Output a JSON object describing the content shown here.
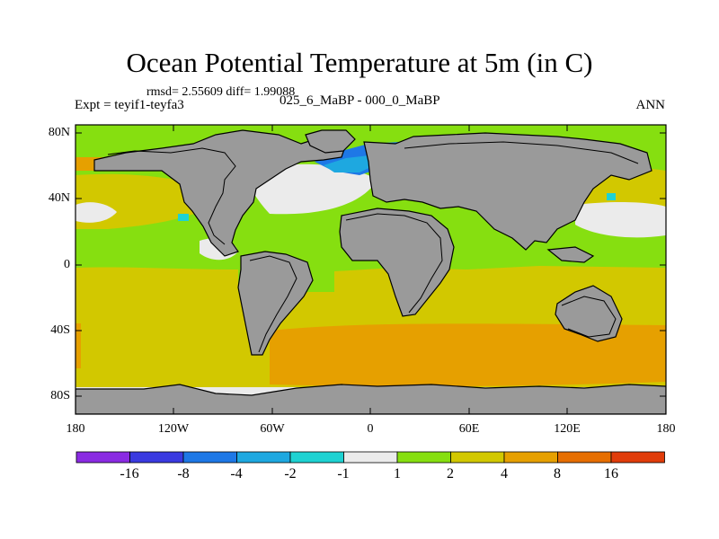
{
  "title": "Ocean Potential Temperature at 5m (in C)",
  "stats_line": "rmsd= 2.55609  diff= 1.99088",
  "experiment_label": "Expt = teyif1-teyfa3",
  "comparison_label": "025_6_MaBP - 000_0_MaBP",
  "season_label": "ANN",
  "lat_labels": [
    "80N",
    "40N",
    "0",
    "40S",
    "80S"
  ],
  "lon_labels": [
    "180",
    "120W",
    "60W",
    "0",
    "60E",
    "120E",
    "180"
  ],
  "colorbar": {
    "labels": [
      "-16",
      "-8",
      "-4",
      "-2",
      "-1",
      "1",
      "2",
      "4",
      "8",
      "16"
    ],
    "colors": [
      "#8a2be2",
      "#3a3ae0",
      "#1e78e6",
      "#1ea8e0",
      "#1ed2d2",
      "#ebebeb",
      "#86df10",
      "#d2c800",
      "#e6a000",
      "#e66e00",
      "#e03c0a"
    ]
  },
  "colors": {
    "land": "#9a9a9a",
    "coast": "#000000"
  }
}
